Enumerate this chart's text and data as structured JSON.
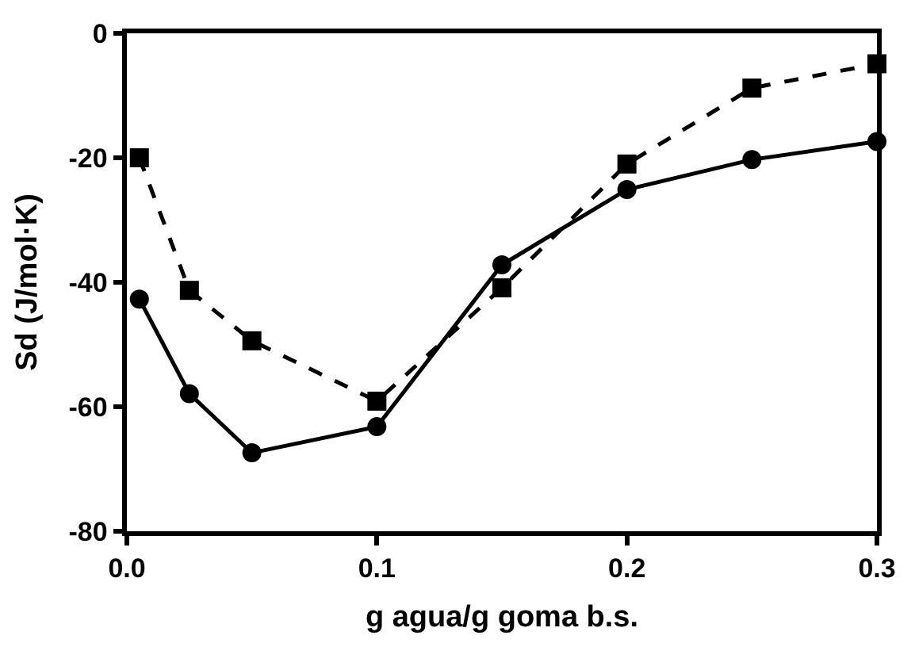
{
  "chart_data": {
    "type": "line",
    "xlabel": "g agua/g goma b.s.",
    "ylabel": "Sd (J/mol·K)",
    "x": [
      0.005,
      0.025,
      0.05,
      0.1,
      0.15,
      0.2,
      0.25,
      0.3
    ],
    "series": [
      {
        "color": "#000000",
        "marker": "circle",
        "line_style": "solid",
        "values": [
          -42.7,
          -57.9,
          -67.4,
          -63.2,
          -37.2,
          -25.1,
          -20.3,
          -17.4
        ]
      },
      {
        "color": "#000000",
        "marker": "square",
        "line_style": "dashed",
        "values": [
          -20.0,
          -41.3,
          -49.4,
          -59.1,
          -40.9,
          -21.0,
          -8.8,
          -4.9
        ]
      }
    ],
    "xlim": [
      0,
      0.3
    ],
    "xticks": [
      {
        "value": 0,
        "label": "0.0"
      },
      0.1,
      0.2,
      0.3
    ],
    "ylim": [
      -80,
      0
    ],
    "yticks": [
      -80,
      -60,
      -40,
      -20,
      0
    ]
  }
}
